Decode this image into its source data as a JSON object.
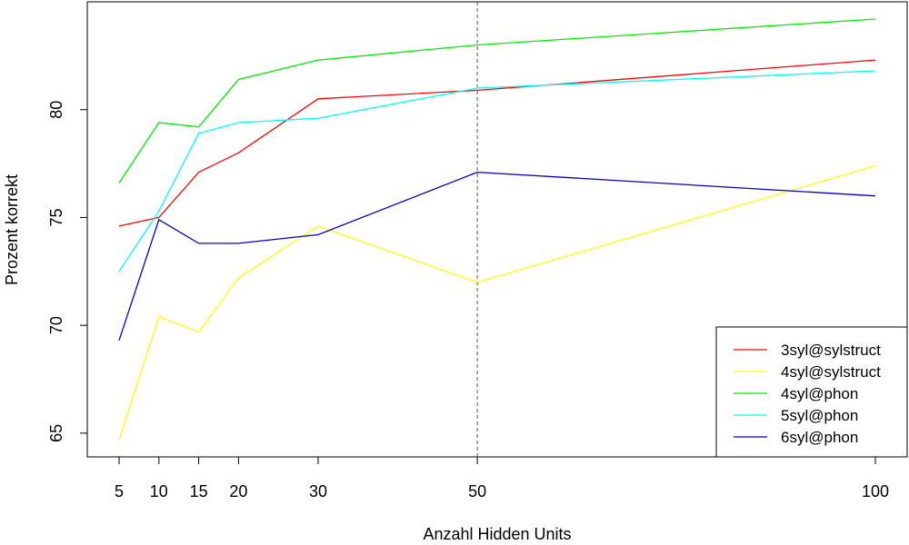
{
  "chart_data": {
    "type": "line",
    "title": "",
    "xlabel": "Anzahl Hidden Units",
    "ylabel": "Prozent korrekt",
    "x": [
      5,
      10,
      15,
      20,
      30,
      50,
      100
    ],
    "xlim": [
      1,
      104
    ],
    "ylim": [
      63.9,
      85
    ],
    "x_ticks": [
      5,
      10,
      15,
      20,
      30,
      50,
      100
    ],
    "y_ticks": [
      65,
      70,
      75,
      80
    ],
    "reference_line": {
      "x": 50,
      "style": "dashed",
      "color": "#555555"
    },
    "grid": false,
    "legend_position": "bottom-right",
    "series": [
      {
        "name": "3syl@sylstruct",
        "color": "#ff0000",
        "values": [
          74.6,
          75.0,
          77.1,
          78.0,
          80.5,
          80.9,
          82.3
        ]
      },
      {
        "name": "4syl@sylstruct",
        "color": "#ffff00",
        "values": [
          64.7,
          70.4,
          69.7,
          72.2,
          74.6,
          72.0,
          77.4
        ]
      },
      {
        "name": "4syl@phon",
        "color": "#00ee00",
        "values": [
          76.6,
          79.4,
          79.2,
          81.4,
          82.3,
          83.0,
          84.2
        ]
      },
      {
        "name": "5syl@phon",
        "color": "#00ffff",
        "values": [
          72.5,
          75.3,
          78.9,
          79.4,
          79.6,
          81.0,
          81.8
        ]
      },
      {
        "name": "6syl@phon",
        "color": "#0000cc",
        "values": [
          69.3,
          74.9,
          73.8,
          73.8,
          74.2,
          77.1,
          76.0
        ]
      }
    ]
  }
}
